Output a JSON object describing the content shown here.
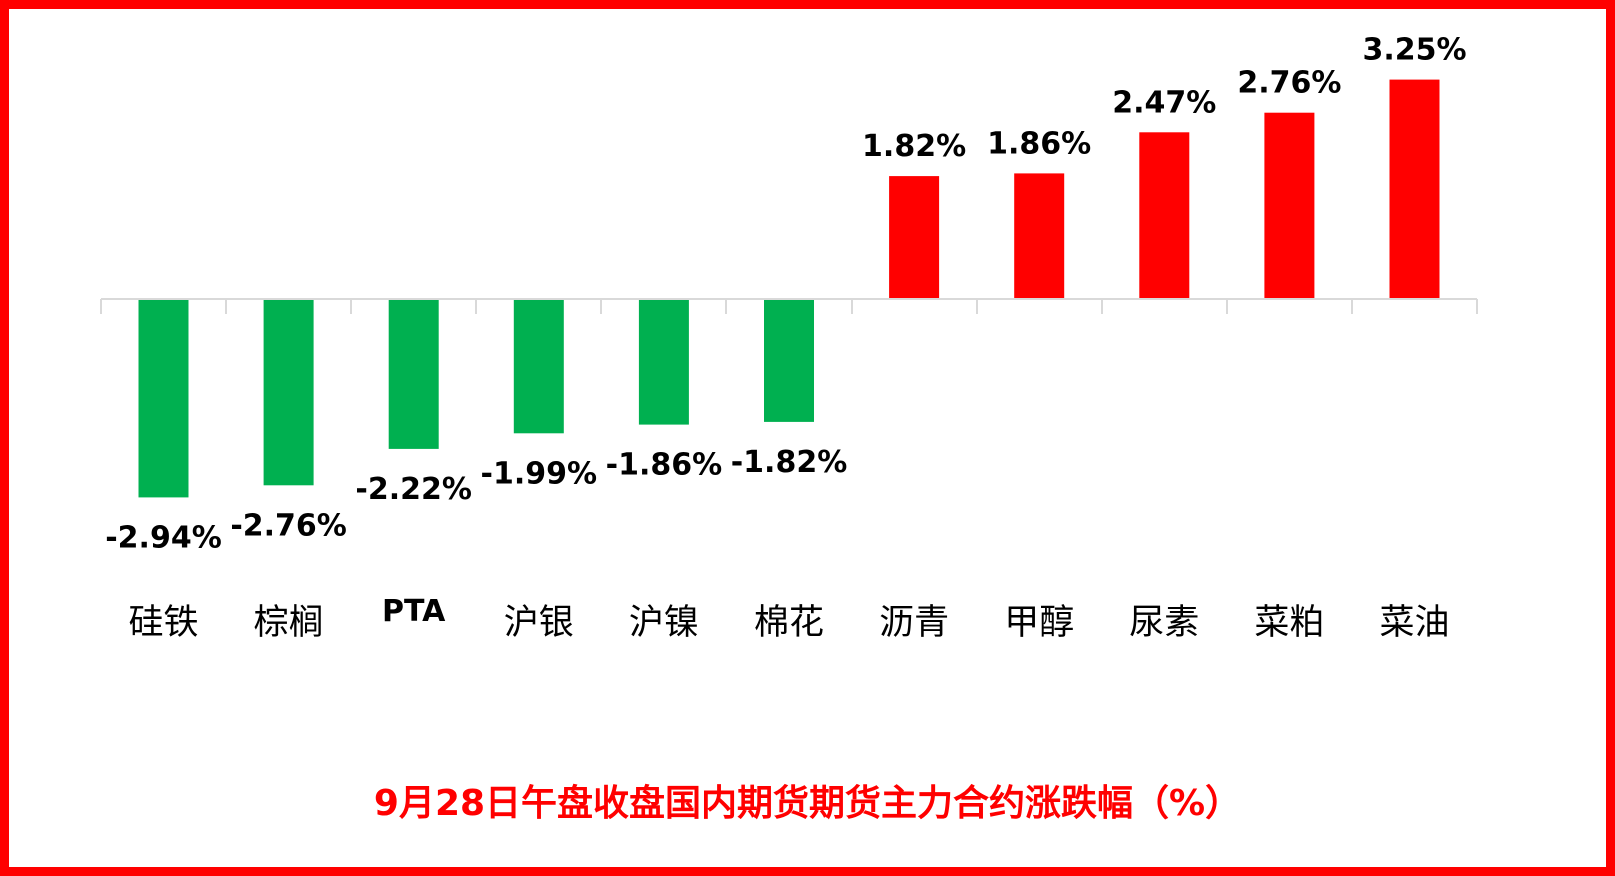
{
  "chart_data": {
    "type": "bar",
    "title": "9月28日午盘收盘国内期货期货主力合约涨跌幅（%）",
    "categories": [
      "硅铁",
      "棕榈",
      "PTA",
      "沪银",
      "沪镍",
      "棉花",
      "沥青",
      "甲醇",
      "尿素",
      "菜粕",
      "菜油"
    ],
    "values": [
      -2.94,
      -2.76,
      -2.22,
      -1.99,
      -1.86,
      -1.82,
      1.82,
      1.86,
      2.47,
      2.76,
      3.25
    ],
    "data_labels": [
      "-2.94%",
      "-2.76%",
      "-2.22%",
      "-1.99%",
      "-1.86%",
      "-1.82%",
      "1.82%",
      "1.86%",
      "2.47%",
      "2.76%",
      "3.25%"
    ],
    "xlabel": "",
    "ylabel": "",
    "ylim": [
      -2.94,
      3.25
    ],
    "grid": false,
    "legend": "none",
    "colors": {
      "positive": "#ff0000",
      "negative": "#00b050",
      "frame": "#ff0000",
      "title": "#ff0000",
      "axis": "#d9d9d9"
    }
  }
}
